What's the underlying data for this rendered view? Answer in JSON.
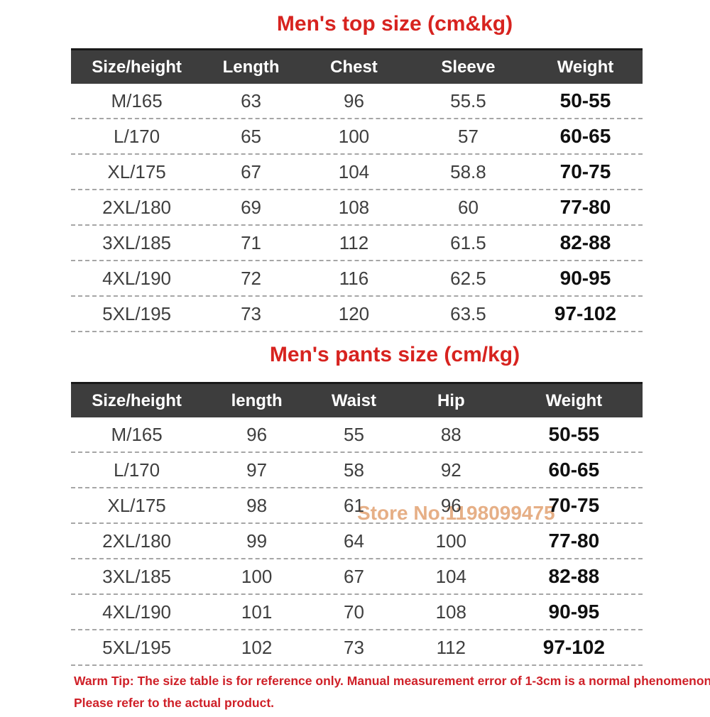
{
  "colors": {
    "title_red": "#d7231f",
    "footer_red": "#cf2028",
    "header_bg": "#3d3d3d",
    "header_text": "#ffffff",
    "cell_text": "#3f3f3f",
    "weight_text": "#101010",
    "divider_gray": "#a6a6a6",
    "watermark_orange": "#e2a272"
  },
  "watermark": "Store No.1198099475",
  "tables": [
    {
      "title": "Men's top size (cm&kg)",
      "headers": [
        "Size/height",
        "Length",
        "Chest",
        "Sleeve",
        "Weight"
      ],
      "rows": [
        [
          "M/165",
          "63",
          "96",
          "55.5",
          "50-55"
        ],
        [
          "L/170",
          "65",
          "100",
          "57",
          "60-65"
        ],
        [
          "XL/175",
          "67",
          "104",
          "58.8",
          "70-75"
        ],
        [
          "2XL/180",
          "69",
          "108",
          "60",
          "77-80"
        ],
        [
          "3XL/185",
          "71",
          "112",
          "61.5",
          "82-88"
        ],
        [
          "4XL/190",
          "72",
          "116",
          "62.5",
          "90-95"
        ],
        [
          "5XL/195",
          "73",
          "120",
          "63.5",
          "97-102"
        ]
      ]
    },
    {
      "title": "Men's pants size (cm/kg)",
      "headers": [
        "Size/height",
        "length",
        "Waist",
        "Hip",
        "Weight"
      ],
      "rows": [
        [
          "M/165",
          "96",
          "55",
          "88",
          "50-55"
        ],
        [
          "L/170",
          "97",
          "58",
          "92",
          "60-65"
        ],
        [
          "XL/175",
          "98",
          "61",
          "96",
          "70-75"
        ],
        [
          "2XL/180",
          "99",
          "64",
          "100",
          "77-80"
        ],
        [
          "3XL/185",
          "100",
          "67",
          "104",
          "82-88"
        ],
        [
          "4XL/190",
          "101",
          "70",
          "108",
          "90-95"
        ],
        [
          "5XL/195",
          "102",
          "73",
          "112",
          "97-102"
        ]
      ]
    }
  ],
  "footer": {
    "line1": "Warm Tip: The size table is for reference only. Manual measurement error of 1-3cm is a normal phenomenon.",
    "line2": "Please refer to the actual product."
  }
}
